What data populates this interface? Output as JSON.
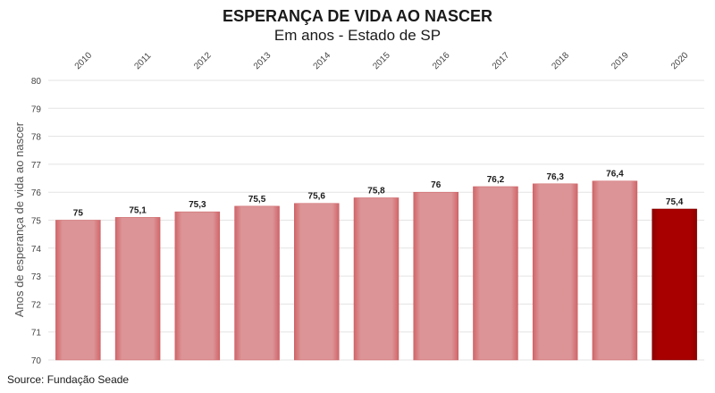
{
  "header": {
    "title": "ESPERANÇA DE VIDA AO NASCER",
    "subtitle": "Em anos - Estado de SP"
  },
  "footer": {
    "source": "Source: Fundação Seade"
  },
  "colors": {
    "bar_regular": "#dc9193",
    "bar_regular_edge": "#cc5c60",
    "bar_highlight": "#a60000",
    "grid": "#e3e3e3"
  },
  "chart_data": {
    "type": "bar",
    "categories": [
      "2010",
      "2011",
      "2012",
      "2013",
      "2014",
      "2015",
      "2016",
      "2017",
      "2018",
      "2019",
      "2020"
    ],
    "values": [
      75,
      75.1,
      75.3,
      75.5,
      75.6,
      75.8,
      76,
      76.2,
      76.3,
      76.4,
      75.4
    ],
    "data_labels": [
      "75",
      "75,1",
      "75,3",
      "75,5",
      "75,6",
      "75,8",
      "76",
      "76,2",
      "76,3",
      "76,4",
      "75,4"
    ],
    "highlight_index": 10,
    "ylabel": "Anos de esperança de vida ao nascer",
    "ylim": [
      70,
      80
    ],
    "yticks": [
      "70",
      "71",
      "72",
      "73",
      "74",
      "75",
      "76",
      "77",
      "78",
      "79",
      "80"
    ],
    "x_axis_position": "top",
    "grid": true
  }
}
